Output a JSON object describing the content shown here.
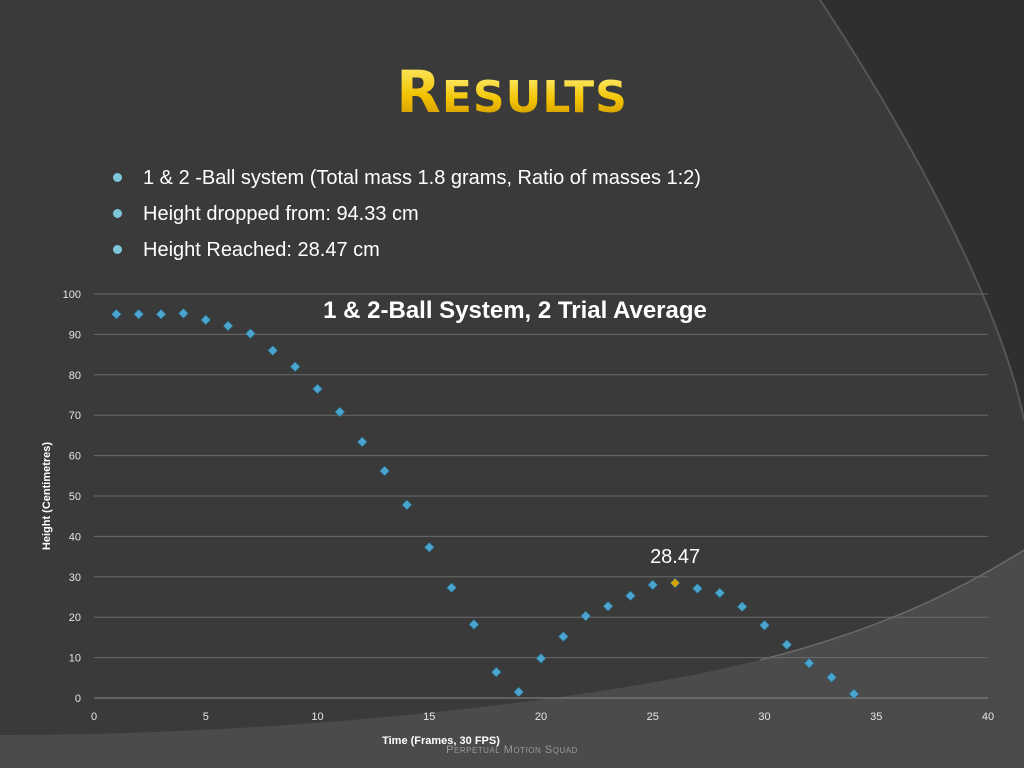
{
  "slide": {
    "title_first": "R",
    "title_rest": "ESULTS",
    "bullets": [
      "1 & 2 -Ball system (Total mass 1.8 grams, Ratio of masses 1:2)",
      "Height dropped from: 94.33 cm",
      "Height Reached: 28.47 cm"
    ],
    "footer": "Perpetual Motion Squad"
  },
  "colors": {
    "background": "#3a3a3a",
    "title_gold": "#f2c200",
    "point": "#4aa6cf",
    "highlight_point": "#d6a400",
    "grid": "#6a6a6a"
  },
  "chart_data": {
    "type": "scatter",
    "title": "1 & 2-Ball System, 2 Trial Average",
    "xlabel": "Time (Frames, 30 FPS)",
    "ylabel": "Height (Centimetres)",
    "xlim": [
      0,
      40
    ],
    "ylim": [
      0,
      100
    ],
    "x_ticks": [
      0,
      5,
      10,
      15,
      20,
      25,
      30,
      35,
      40
    ],
    "y_ticks": [
      0,
      10,
      20,
      30,
      40,
      50,
      60,
      70,
      80,
      90,
      100
    ],
    "grid": true,
    "legend": "none",
    "series": [
      {
        "x": [
          1,
          2,
          3,
          4,
          5,
          6,
          7,
          8,
          9,
          10,
          11,
          12,
          13,
          14,
          15,
          16,
          17,
          18,
          19,
          20,
          21,
          22,
          23,
          24,
          25,
          26,
          27,
          28,
          29,
          30,
          31,
          32,
          33,
          34
        ],
        "y": [
          95,
          95,
          95,
          95.2,
          93.6,
          92.1,
          90.2,
          86,
          82,
          76.5,
          70.8,
          63.4,
          56.2,
          47.8,
          37.3,
          27.3,
          18.2,
          6.4,
          1.5,
          9.8,
          15.2,
          20.3,
          22.7,
          25.3,
          28,
          28.47,
          27.1,
          26,
          22.6,
          18,
          13.2,
          8.6,
          5.1,
          1
        ]
      }
    ],
    "highlight": {
      "x": 26,
      "y": 28.47,
      "label": "28.47"
    }
  }
}
